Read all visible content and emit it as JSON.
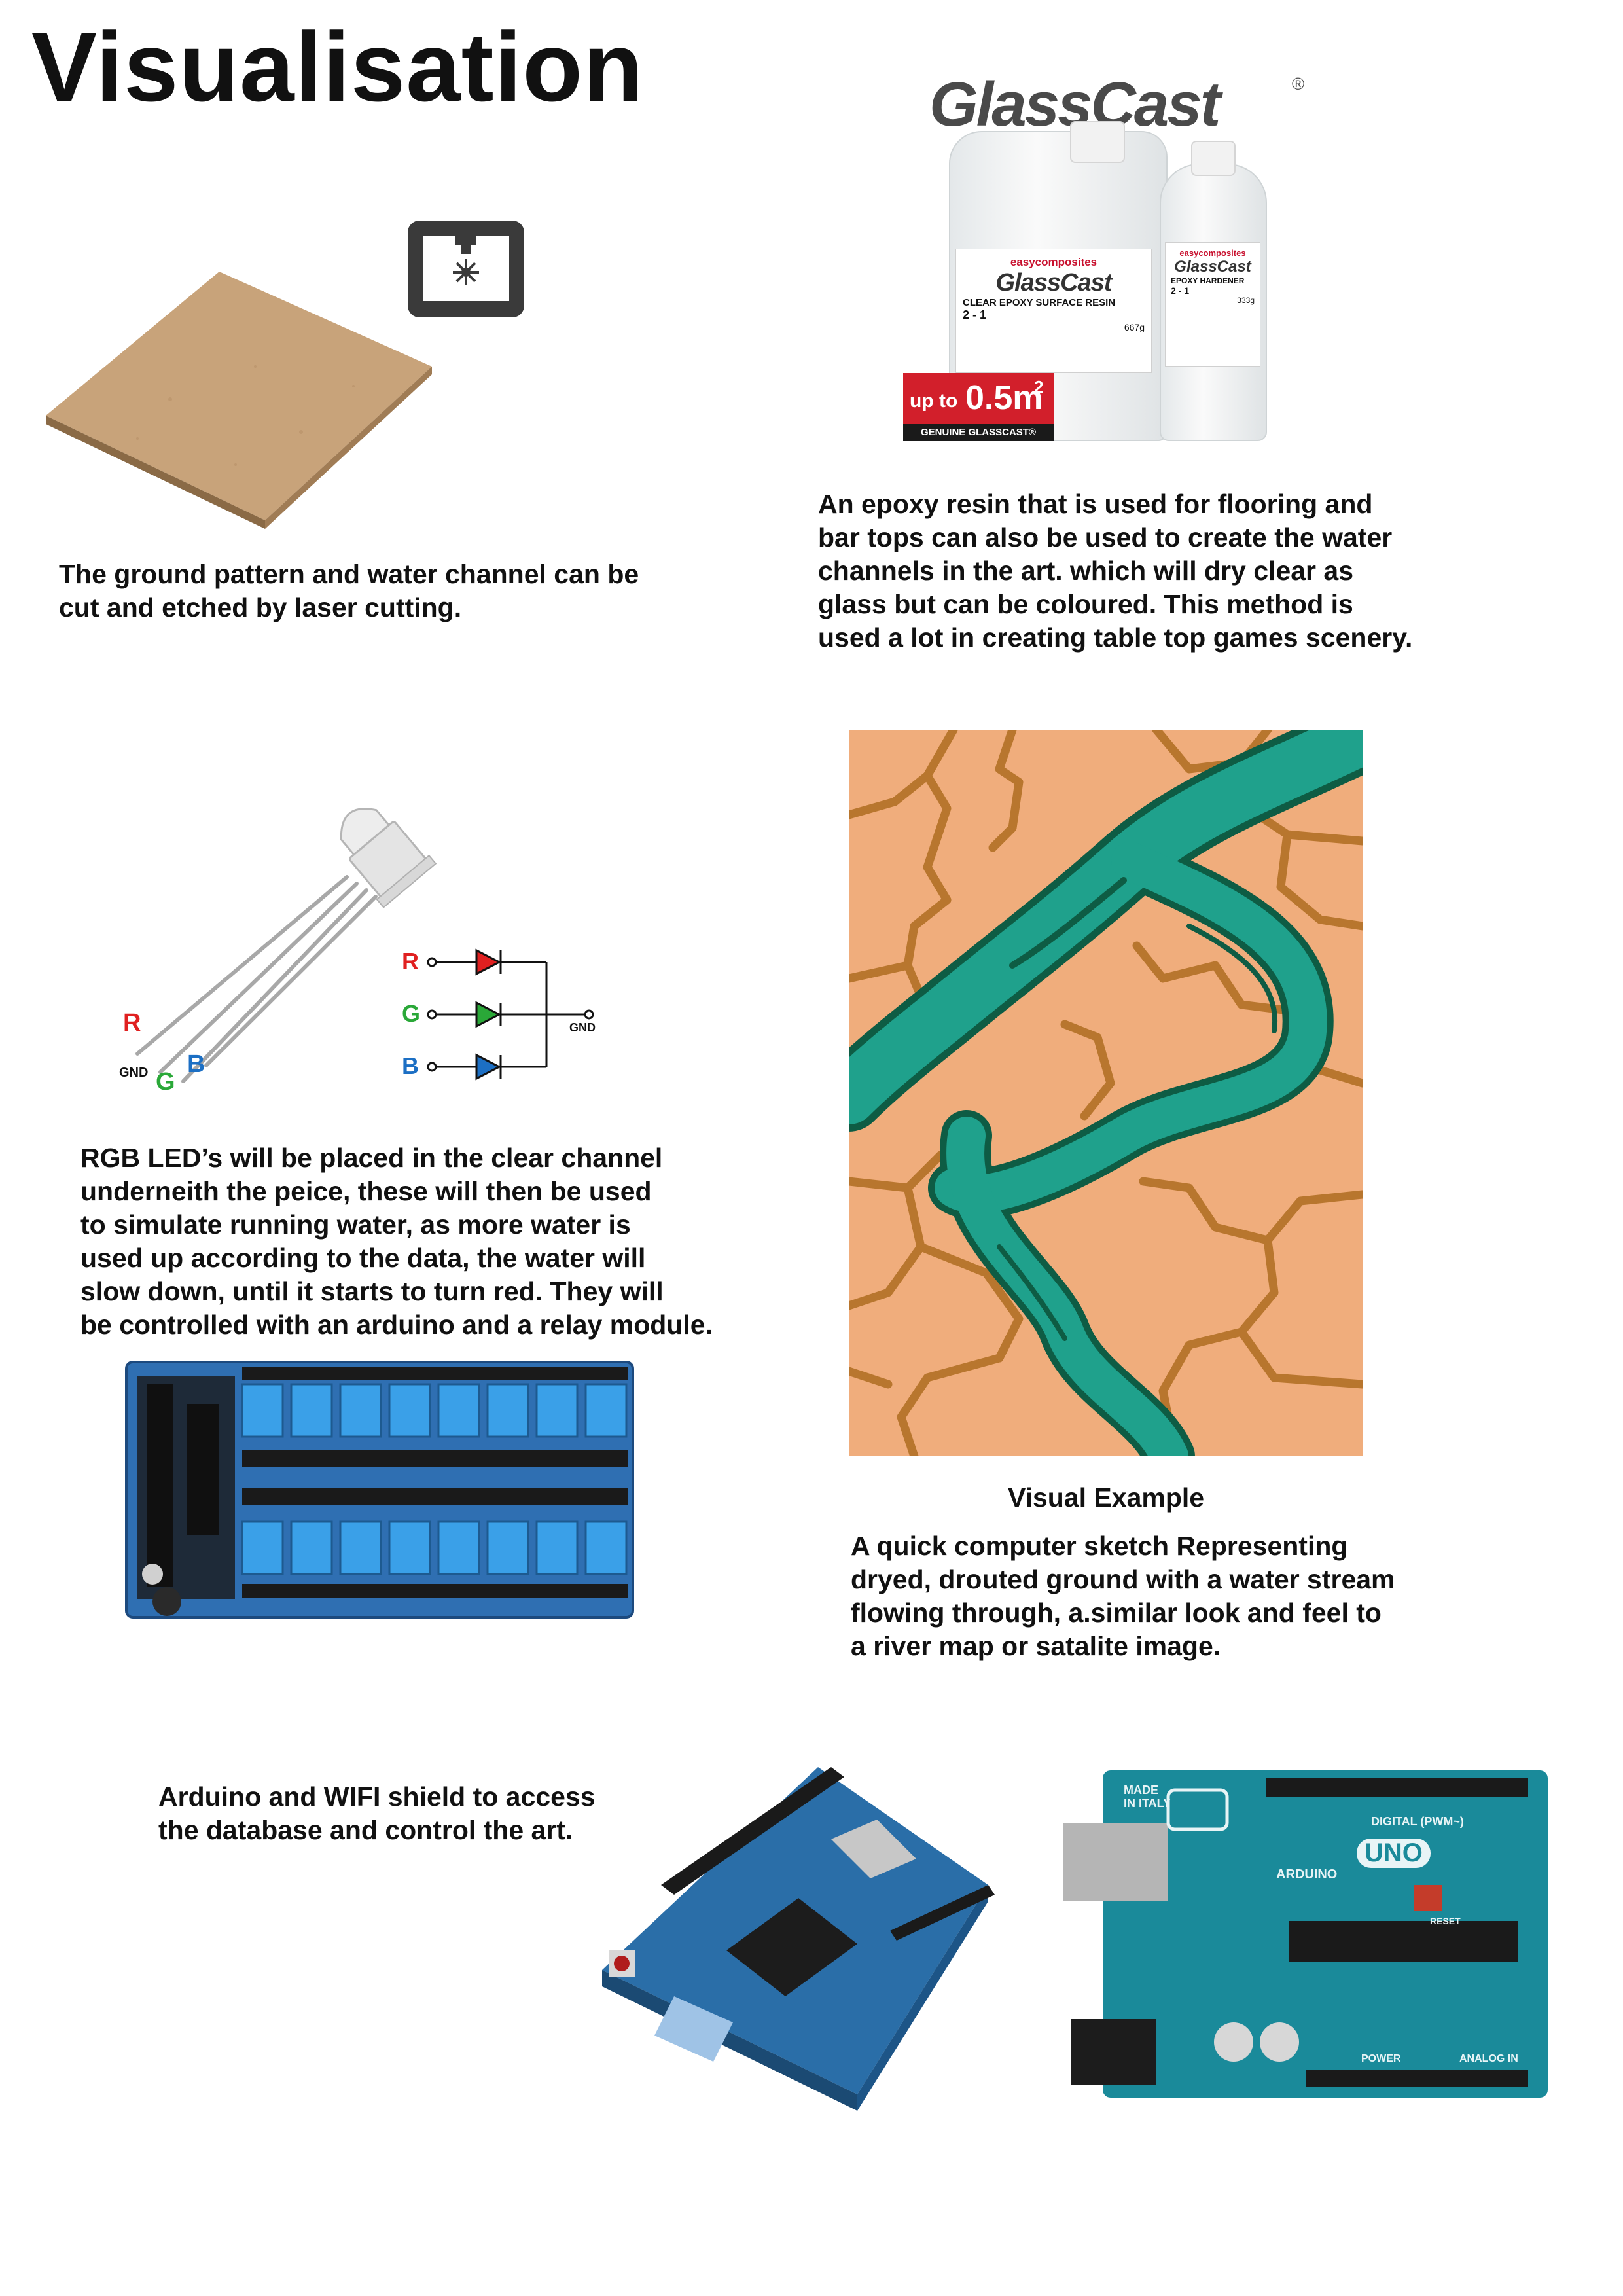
{
  "page": {
    "title": "Visualisation"
  },
  "laser_section": {
    "caption": "The ground pattern  and water channel can be\ncut and etched by laser cutting.",
    "icon": "laser-cutter-icon"
  },
  "epoxy_section": {
    "brand": "GlassCast",
    "registered_mark": "®",
    "maker_label": "easycomposites",
    "resin_label": "CLEAR EPOXY SURFACE RESIN",
    "resin_ratio": "2 - 1",
    "resin_weight": "667g",
    "hardener_label": "EPOXY HARDENER",
    "hardener_ratio": "2 - 1",
    "hardener_weight": "333g",
    "coverage_prefix": "up to",
    "coverage_value": "0.5m",
    "coverage_sup": "2",
    "genuine_label": "GENUINE GLASSCAST®",
    "caption": "An epoxy resin that is used for flooring and\nbar tops can also be used to create the water\nchannels in the art. which will dry clear as\nglass but can be coloured. This method is\nused a lot in creating table top games scenery."
  },
  "led_section": {
    "pin_labels": {
      "r": "R",
      "g": "G",
      "b": "B",
      "gnd": "GND"
    },
    "schematic": {
      "r": "R",
      "g": "G",
      "b": "B",
      "gnd": "GND"
    },
    "colors": {
      "r": "#e02020",
      "g": "#2aa838",
      "b": "#1c6fc4"
    },
    "caption": "RGB LED’s will be placed in the clear channel\nunderneith the peice, these will then be used\nto simulate running water, as more water is\nused up according to the data, the water will\nslow down, until it starts to turn red. They will\nbe controlled with an arduino and a relay module."
  },
  "visual_example": {
    "heading": "Visual Example",
    "caption": "A quick computer sketch Representing\ndryed, drouted ground with a water stream\nflowing through, a.similar look and feel to\na river map or satalite image.",
    "colors": {
      "ground": "#f0ad7c",
      "crack": "#b8762e",
      "water": "#1fa18c",
      "water_edge": "#0e5c44"
    }
  },
  "arduino_section": {
    "caption": "Arduino and WIFI shield to access\nthe database and control the art.",
    "uno_made": "MADE\nIN ITALY",
    "uno_brand": "ARDUINO",
    "uno_model": "UNO",
    "uno_digital": "DIGITAL (PWM~)",
    "uno_power": "POWER",
    "uno_analog": "ANALOG IN",
    "uno_reset": "RESET"
  }
}
